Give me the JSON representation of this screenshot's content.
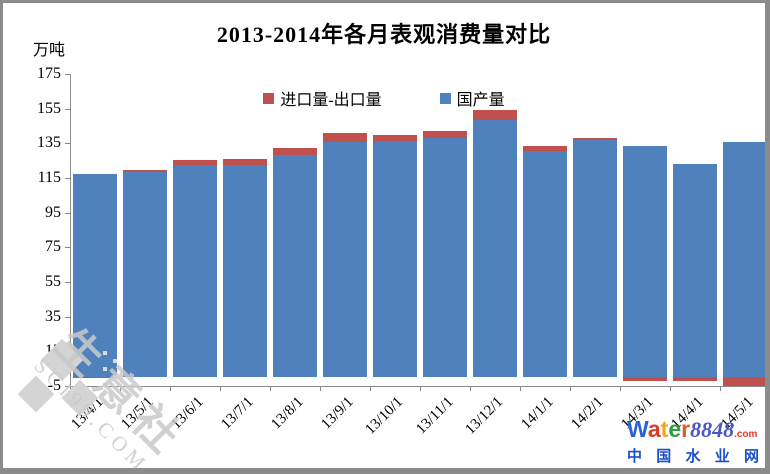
{
  "title": "2013-2014年各月表观消费量对比",
  "y_axis": {
    "unit_label": "万吨",
    "tick_values": [
      175,
      155,
      135,
      115,
      95,
      75,
      55,
      35,
      15,
      -5
    ]
  },
  "legend": [
    {
      "label": "进口量-出口量",
      "color": "#c0504d"
    },
    {
      "label": "国产量",
      "color": "#4f81bd"
    }
  ],
  "chart_data": {
    "type": "bar",
    "stacked": true,
    "title": "2013-2014年各月表观消费量对比",
    "ylabel": "万吨",
    "ylim": [
      -5,
      175
    ],
    "grid": false,
    "legend_position": "top-center",
    "categories": [
      "13/4/1",
      "13/5/1",
      "13/6/1",
      "13/7/1",
      "13/8/1",
      "13/9/1",
      "13/10/1",
      "13/11/1",
      "13/12/1",
      "14/1/1",
      "14/2/1",
      "14/3/1",
      "14/4/1",
      "14/5/1"
    ],
    "series": [
      {
        "name": "国产量",
        "color": "#4f81bd",
        "values": [
          117,
          118.5,
          122.5,
          122.5,
          128.5,
          136,
          136.5,
          138,
          148.5,
          130.5,
          137,
          133.5,
          123,
          136
        ]
      },
      {
        "name": "进口量-出口量",
        "color": "#c0504d",
        "values": [
          -0.5,
          1,
          3,
          3.5,
          4,
          5,
          3.5,
          4,
          5.5,
          3,
          1,
          -2,
          -2,
          -5
        ]
      }
    ]
  },
  "watermarks": {
    "sci": {
      "text_cn": "生意社",
      "text_en": "SCI99.COM"
    },
    "water8848": {
      "letters": [
        {
          "ch": "W",
          "color": "#2a63d8"
        },
        {
          "ch": "a",
          "color": "#dd3a25"
        },
        {
          "ch": "t",
          "color": "#f3a812"
        },
        {
          "ch": "e",
          "color": "#2f9e3f"
        },
        {
          "ch": "r",
          "color": "#e05a2b"
        }
      ],
      "number": "8848",
      "dotcom": ".com",
      "subtitle": "中国水业网"
    }
  }
}
